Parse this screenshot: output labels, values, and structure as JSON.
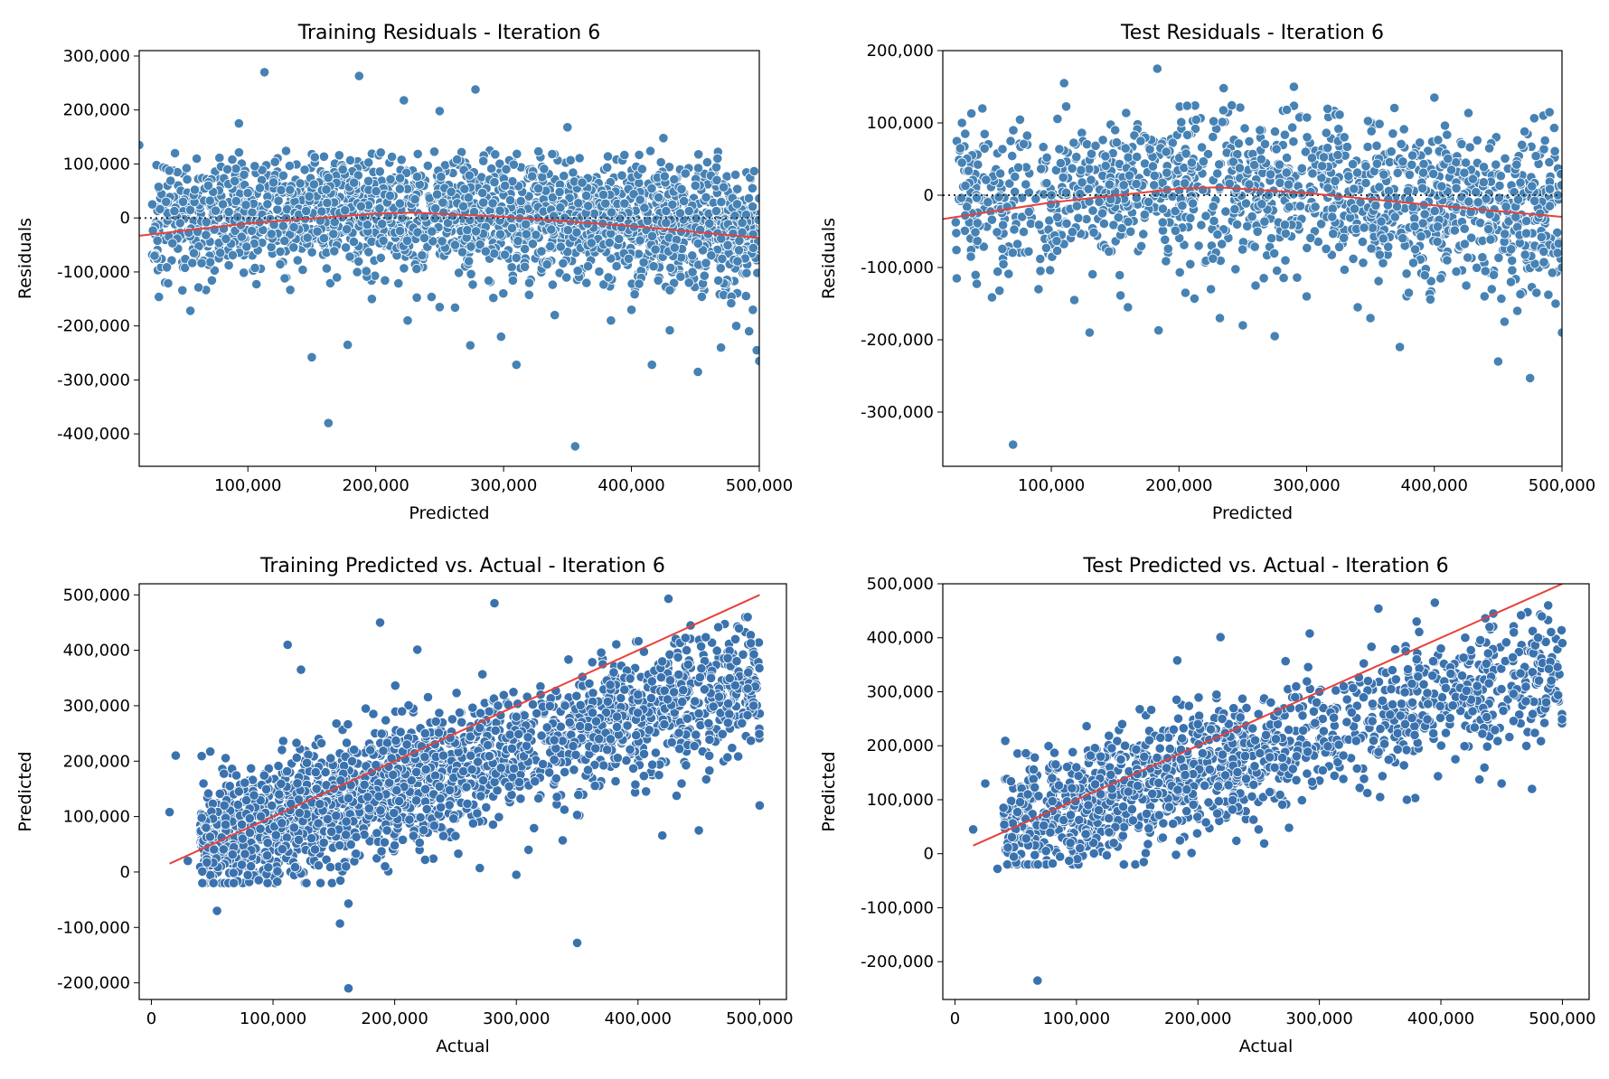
{
  "chart_data": [
    {
      "type": "scatter",
      "title": "Training Residuals - Iteration 6",
      "xlabel": "Predicted",
      "ylabel": "Residuals",
      "xlim": [
        15000,
        500000
      ],
      "ylim": [
        -460000,
        310000
      ],
      "xticks": [
        100000,
        200000,
        300000,
        400000,
        500000
      ],
      "xtick_labels": [
        "100,000",
        "200,000",
        "300,000",
        "400,000",
        "500,000"
      ],
      "yticks": [
        -400000,
        -300000,
        -200000,
        -100000,
        0,
        100000,
        200000,
        300000
      ],
      "ytick_labels": [
        "-400,000",
        "-300,000",
        "-200,000",
        "-100,000",
        "0",
        "100,000",
        "200,000",
        "300,000"
      ],
      "point_color": "#4682b4",
      "zero_line": {
        "y": 0,
        "style": "dotted",
        "color": "#333333"
      },
      "trend_line": {
        "color": "#e8413a",
        "x": [
          15000,
          100000,
          200000,
          230000,
          300000,
          400000,
          500000
        ],
        "y": [
          -33000,
          -10000,
          8000,
          10000,
          2000,
          -15000,
          -37000
        ]
      },
      "series": [
        {
          "x": [
            113000,
            187000,
            222000,
            278000,
            250000,
            93000,
            350000,
            425000,
            15000,
            43000,
            60000,
            79000,
            97000,
            120000,
            133000,
            148000,
            162000,
            176000,
            190000,
            205000,
            219000,
            238000,
            262000,
            286000,
            310000,
            334000,
            358000,
            382000,
            406000,
            430000,
            455000,
            478000,
            495000,
            55000,
            150000,
            163000,
            178000,
            225000,
            250000,
            262000,
            298000,
            310000,
            340000,
            356000,
            384000,
            400000,
            416000,
            430000,
            452000,
            470000,
            482000,
            492000,
            498000,
            500000,
            274000,
            197000,
            84000,
            69000,
            36000,
            27000
          ],
          "y": [
            270000,
            263000,
            218000,
            238000,
            198000,
            175000,
            168000,
            148000,
            135000,
            120000,
            110000,
            95000,
            80000,
            66000,
            52000,
            40000,
            28000,
            14000,
            2000,
            -11000,
            -24000,
            -37000,
            -50000,
            -62000,
            -74000,
            -86000,
            -98000,
            -110000,
            -122000,
            -134000,
            -146000,
            -158000,
            -170000,
            -172000,
            -258000,
            -380000,
            -235000,
            -190000,
            -165000,
            -166000,
            -220000,
            -272000,
            -180000,
            -423000,
            -190000,
            -170000,
            -272000,
            -208000,
            -285000,
            -240000,
            -200000,
            -210000,
            -245000,
            -265000,
            -236000,
            -150000,
            90000,
            60000,
            30000,
            -70000
          ]
        }
      ]
    },
    {
      "type": "scatter",
      "title": "Test Residuals - Iteration 6",
      "xlabel": "Predicted",
      "ylabel": "Residuals",
      "xlim": [
        15000,
        500000
      ],
      "ylim": [
        -375000,
        200000
      ],
      "xticks": [
        100000,
        200000,
        300000,
        400000,
        500000
      ],
      "xtick_labels": [
        "100,000",
        "200,000",
        "300,000",
        "400,000",
        "500,000"
      ],
      "yticks": [
        -300000,
        -200000,
        -100000,
        0,
        100000,
        200000
      ],
      "ytick_labels": [
        "-300,000",
        "-200,000",
        "-100,000",
        "0",
        "100,000",
        "200,000"
      ],
      "point_color": "#4682b4",
      "zero_line": {
        "y": 0,
        "style": "dotted",
        "color": "#333333"
      },
      "trend_line": {
        "color": "#e8413a",
        "x": [
          15000,
          100000,
          200000,
          230000,
          300000,
          400000,
          500000
        ],
        "y": [
          -33000,
          -10000,
          9000,
          11000,
          3000,
          -14000,
          -30000
        ]
      },
      "series": [
        {
          "x": [
            183000,
            110000,
            235000,
            290000,
            400000,
            30000,
            46000,
            70000,
            130000,
            160000,
            184000,
            232000,
            250000,
            275000,
            350000,
            373000,
            450000,
            475000,
            500000,
            30000,
            60000,
            80000,
            100000,
            120000,
            140000,
            150000,
            170000,
            190000,
            210000,
            230000,
            255000,
            270000,
            295000,
            320000,
            345000,
            360000,
            385000,
            410000,
            440000,
            460000,
            480000,
            495000,
            500000,
            465000,
            445000,
            455000,
            425000,
            405000,
            380000,
            340000,
            300000,
            205000,
            225000,
            260000,
            118000,
            90000
          ],
          "y": [
            175000,
            155000,
            148000,
            150000,
            135000,
            100000,
            120000,
            -345000,
            -190000,
            -155000,
            -187000,
            -170000,
            -180000,
            -195000,
            -170000,
            -210000,
            -230000,
            -253000,
            -190000,
            45000,
            30000,
            15000,
            0,
            -15000,
            -25000,
            90000,
            75000,
            60000,
            45000,
            30000,
            15000,
            0,
            -15000,
            -30000,
            -45000,
            -60000,
            -75000,
            -90000,
            -105000,
            -120000,
            -135000,
            -150000,
            -100000,
            -160000,
            -130000,
            -175000,
            -125000,
            -115000,
            -135000,
            -155000,
            -140000,
            -135000,
            -130000,
            -125000,
            -145000,
            -130000
          ]
        }
      ]
    },
    {
      "type": "scatter",
      "title": "Training Predicted vs. Actual - Iteration 6",
      "xlabel": "Actual",
      "ylabel": "Predicted",
      "xlim": [
        -10000,
        522000
      ],
      "ylim": [
        -230000,
        520000
      ],
      "xticks": [
        0,
        100000,
        200000,
        300000,
        400000,
        500000
      ],
      "xtick_labels": [
        "0",
        "100,000",
        "200,000",
        "300,000",
        "400,000",
        "500,000"
      ],
      "yticks": [
        -200000,
        -100000,
        0,
        100000,
        200000,
        300000,
        400000,
        500000
      ],
      "ytick_labels": [
        "-200,000",
        "-100,000",
        "0",
        "100,000",
        "200,000",
        "300,000",
        "400,000",
        "500,000"
      ],
      "point_color": "#3a72ae",
      "trend_line": {
        "color": "#e8413a",
        "x": [
          15000,
          500000
        ],
        "y": [
          15000,
          500000
        ]
      },
      "series": [
        {
          "x": [
            162000,
            350000,
            155000,
            162000,
            54000,
            188000,
            112000,
            282000,
            425000,
            420000,
            123000,
            310000,
            300000,
            270000,
            15000,
            20000,
            30000,
            45000,
            60000,
            75000,
            90000,
            105000,
            120000,
            135000,
            150000,
            165000,
            180000,
            195000,
            210000,
            225000,
            240000,
            255000,
            270000,
            285000,
            300000,
            320000,
            340000,
            360000,
            380000,
            400000,
            420000,
            440000,
            460000,
            480000,
            495000,
            500000,
            450000,
            350000,
            250000,
            225000,
            240000,
            200000,
            160000
          ],
          "y": [
            -210000,
            -128000,
            -93000,
            -57000,
            -70000,
            450000,
            410000,
            485000,
            493000,
            66000,
            365000,
            40000,
            -5000,
            7000,
            108000,
            210000,
            20000,
            80000,
            120000,
            60000,
            100000,
            140000,
            160000,
            180000,
            150000,
            200000,
            220000,
            190000,
            230000,
            250000,
            210000,
            270000,
            260000,
            300000,
            280000,
            320000,
            300000,
            340000,
            360000,
            320000,
            380000,
            400000,
            350000,
            420000,
            300000,
            120000,
            75000,
            103000,
            65000,
            22000,
            65000,
            48000,
            10000
          ]
        }
      ]
    },
    {
      "type": "scatter",
      "title": "Test Predicted vs. Actual - Iteration 6",
      "xlabel": "Actual",
      "ylabel": "Predicted",
      "xlim": [
        -10000,
        522000
      ],
      "ylim": [
        -270000,
        500000
      ],
      "xticks": [
        0,
        100000,
        200000,
        300000,
        400000,
        500000
      ],
      "xtick_labels": [
        "0",
        "100,000",
        "200,000",
        "300,000",
        "400,000",
        "500,000"
      ],
      "yticks": [
        -200000,
        -100000,
        0,
        100000,
        200000,
        300000,
        400000,
        500000
      ],
      "ytick_labels": [
        "-200,000",
        "-100,000",
        "0",
        "100,000",
        "200,000",
        "300,000",
        "400,000",
        "500,000"
      ],
      "point_color": "#3a72ae",
      "trend_line": {
        "color": "#e8413a",
        "x": [
          15000,
          500000
        ],
        "y": [
          15000,
          500000
        ]
      },
      "series": [
        {
          "x": [
            68000,
            35000,
            15000,
            25000,
            40000,
            60000,
            80000,
            100000,
            120000,
            140000,
            160000,
            180000,
            200000,
            220000,
            240000,
            260000,
            280000,
            300000,
            320000,
            340000,
            360000,
            380000,
            400000,
            420000,
            440000,
            460000,
            480000,
            500000,
            395000,
            380000,
            183000,
            292000,
            275000,
            250000,
            350000,
            372000,
            450000,
            475000,
            182000,
            75000,
            95000,
            125000
          ],
          "y": [
            -235000,
            -28000,
            45000,
            130000,
            85000,
            110000,
            140000,
            160000,
            180000,
            200000,
            210000,
            230000,
            240000,
            250000,
            270000,
            280000,
            290000,
            300000,
            310000,
            320000,
            340000,
            360000,
            380000,
            400000,
            420000,
            410000,
            400000,
            390000,
            465000,
            430000,
            358000,
            408000,
            48000,
            45000,
            105000,
            100000,
            130000,
            120000,
            -2000,
            5000,
            20000,
            -3000
          ]
        }
      ]
    }
  ]
}
